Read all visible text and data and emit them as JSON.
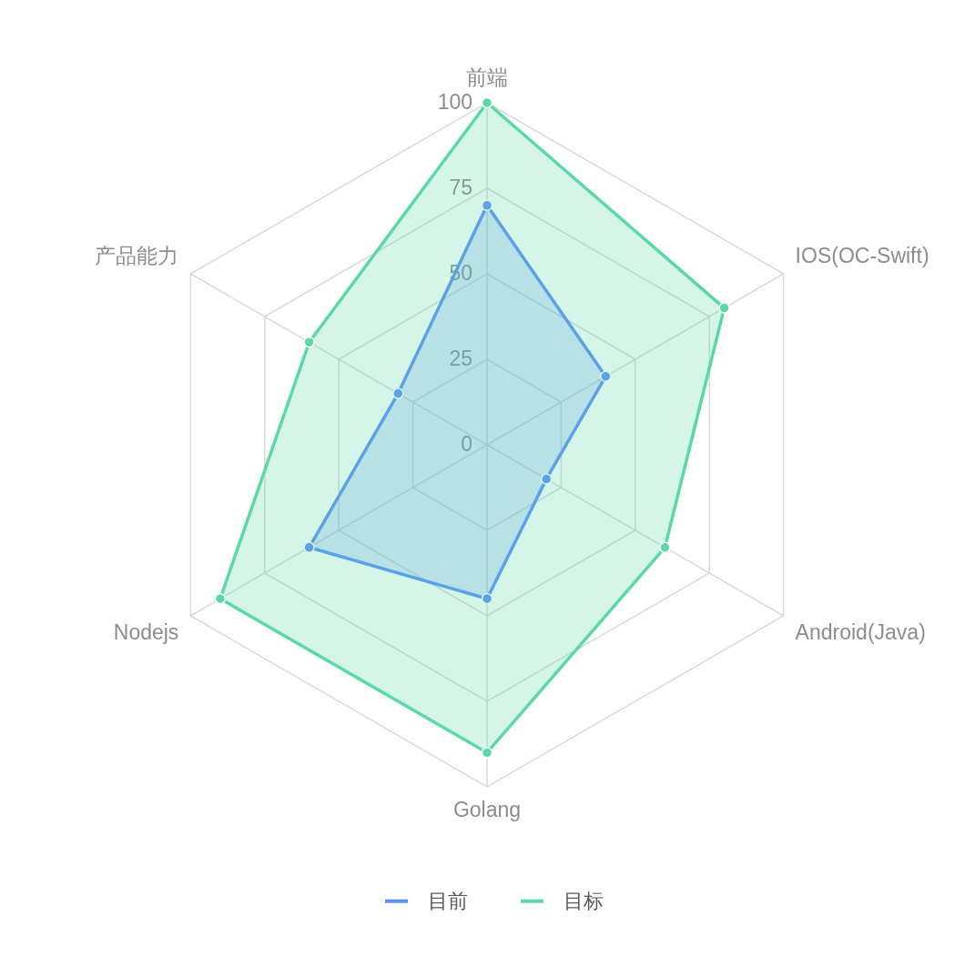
{
  "chart_data": {
    "type": "radar",
    "categories": [
      "前端",
      "IOS(OC-Swift)",
      "Android(Java)",
      "Golang",
      "Nodejs",
      "产品能力"
    ],
    "series": [
      {
        "name": "目前",
        "color": "#5b8ff9",
        "values": [
          70,
          40,
          20,
          45,
          60,
          30
        ]
      },
      {
        "name": "目标",
        "color": "#5ad8a6",
        "values": [
          100,
          80,
          60,
          90,
          90,
          60
        ]
      }
    ],
    "ylim": [
      0,
      100
    ],
    "yticks": [
      0,
      25,
      50,
      75,
      100
    ],
    "grid": true,
    "legend": "bottom",
    "marker": "circle",
    "line_style": "solid"
  }
}
